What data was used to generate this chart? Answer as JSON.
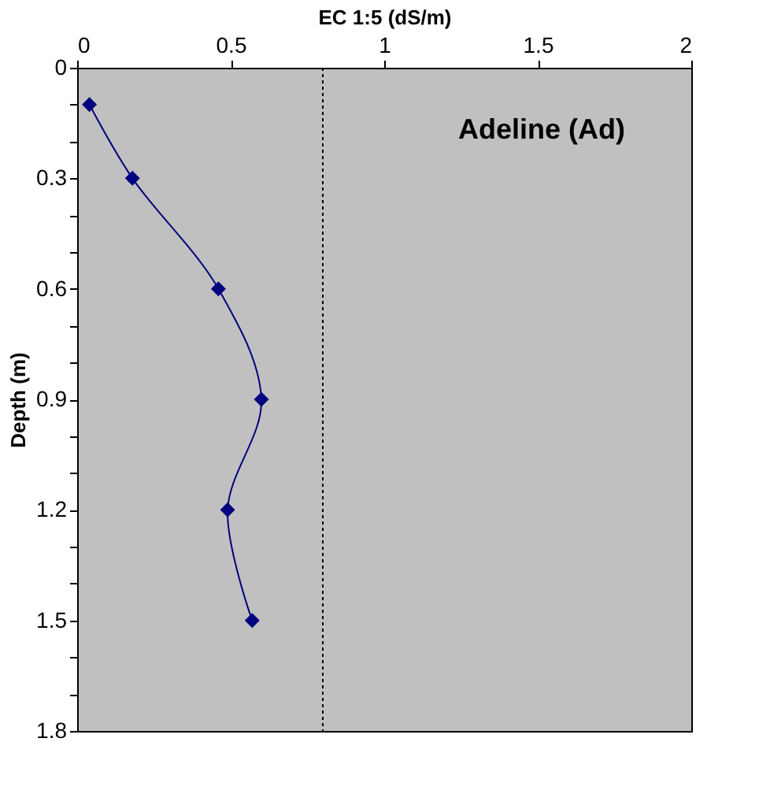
{
  "chart_data": {
    "type": "line",
    "xlabel": "EC 1:5  (dS/m)",
    "ylabel": "Depth (m)",
    "annotations": [
      "Adeline (Ad)"
    ],
    "x": [
      0.04,
      0.18,
      0.46,
      0.6,
      0.49,
      0.57
    ],
    "series": [
      {
        "color": "#000080",
        "values": [
          0.1,
          0.3,
          0.6,
          0.9,
          1.2,
          1.5
        ]
      }
    ],
    "xlim": [
      0,
      2
    ],
    "xticks": [
      0,
      0.5,
      1,
      1.5,
      2
    ],
    "ylim": [
      1.8,
      0
    ],
    "yticks": [
      0,
      {
        "value": 0.1,
        "label": null
      },
      {
        "value": 0.2,
        "label": null
      },
      0.3,
      {
        "value": 0.4,
        "label": null
      },
      {
        "value": 0.5,
        "label": null
      },
      0.6,
      {
        "value": 0.7,
        "label": null
      },
      {
        "value": 0.8,
        "label": null
      },
      0.9,
      {
        "value": 1.0,
        "label": null
      },
      {
        "value": 1.1,
        "label": null
      },
      1.2,
      {
        "value": 1.3,
        "label": null
      },
      {
        "value": 1.4,
        "label": null
      },
      1.5,
      {
        "value": 1.6,
        "label": null
      },
      {
        "value": 1.7,
        "label": null
      },
      1.8
    ],
    "ref_lines": [
      {
        "axis": "x",
        "value": 0.8,
        "label": null,
        "color": "#000000",
        "line_style": "dotted"
      }
    ],
    "marker": "diamond",
    "line_style": "solid",
    "grid": false
  }
}
